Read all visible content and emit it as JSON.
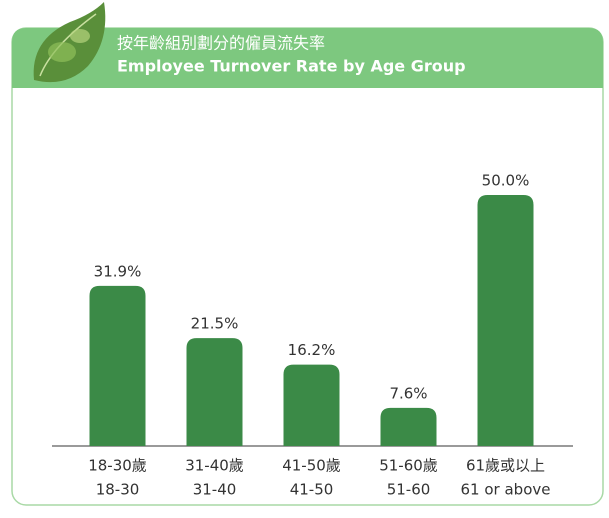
{
  "chart_data": {
    "type": "bar",
    "title": "按年齡組別劃分的僱員流失率",
    "subtitle": "Employee Turnover Rate by Age Group",
    "categories": [
      [
        "18-30歲",
        "18-30"
      ],
      [
        "31-40歲",
        "31-40"
      ],
      [
        "41-50歲",
        "41-50"
      ],
      [
        "51-60歲",
        "51-60"
      ],
      [
        "61歲或以上",
        "61 or above"
      ]
    ],
    "values": [
      31.9,
      21.5,
      16.2,
      7.6,
      50.0
    ],
    "value_labels": [
      "31.9%",
      "21.5%",
      "16.2%",
      "7.6%",
      "50.0%"
    ],
    "color": "#3b8a47"
  }
}
